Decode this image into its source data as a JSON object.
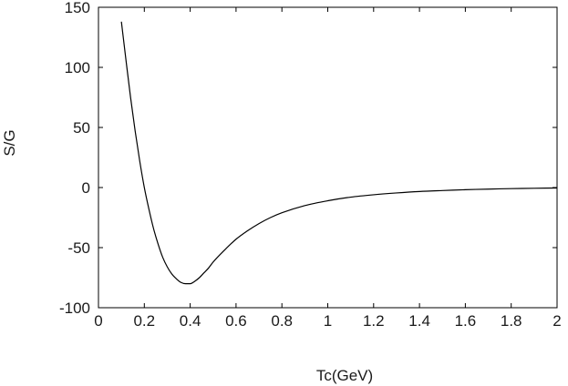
{
  "chart_data": {
    "type": "line",
    "title": "",
    "xlabel": "Tc(GeV)",
    "ylabel": "S/G",
    "xlim": [
      0,
      2
    ],
    "ylim": [
      -100,
      150
    ],
    "x_ticks": [
      0,
      0.2,
      0.4,
      0.6,
      0.8,
      1,
      1.2,
      1.4,
      1.6,
      1.8,
      2
    ],
    "x_tick_labels": [
      "0",
      "0.2",
      "0.4",
      "0.6",
      "0.8",
      "1",
      "1.2",
      "1.4",
      "1.6",
      "1.8",
      "2"
    ],
    "y_ticks": [
      -100,
      -50,
      0,
      50,
      100,
      150
    ],
    "y_tick_labels": [
      "-100",
      "-50",
      "0",
      "50",
      "100",
      "150"
    ],
    "grid": false,
    "legend": "none",
    "line_color": "#000000",
    "series": [
      {
        "x": [
          0.1,
          0.12,
          0.14,
          0.16,
          0.18,
          0.2,
          0.22,
          0.24,
          0.26,
          0.28,
          0.3,
          0.32,
          0.34,
          0.36,
          0.38,
          0.4,
          0.42,
          0.44,
          0.46,
          0.48,
          0.5,
          0.55,
          0.6,
          0.65,
          0.7,
          0.75,
          0.8,
          0.9,
          1.0,
          1.1,
          1.2,
          1.3,
          1.4,
          1.5,
          1.6,
          1.7,
          1.8,
          1.9,
          2.0
        ],
        "y": [
          138,
          106,
          75,
          47,
          22,
          0,
          -18,
          -34,
          -47,
          -58,
          -66,
          -72,
          -76,
          -79,
          -80,
          -80,
          -78,
          -75,
          -71,
          -67,
          -62,
          -52,
          -43,
          -36,
          -30,
          -25,
          -21,
          -15,
          -11,
          -8,
          -6,
          -4.5,
          -3.3,
          -2.5,
          -1.8,
          -1.3,
          -0.9,
          -0.6,
          -0.4
        ]
      }
    ]
  }
}
